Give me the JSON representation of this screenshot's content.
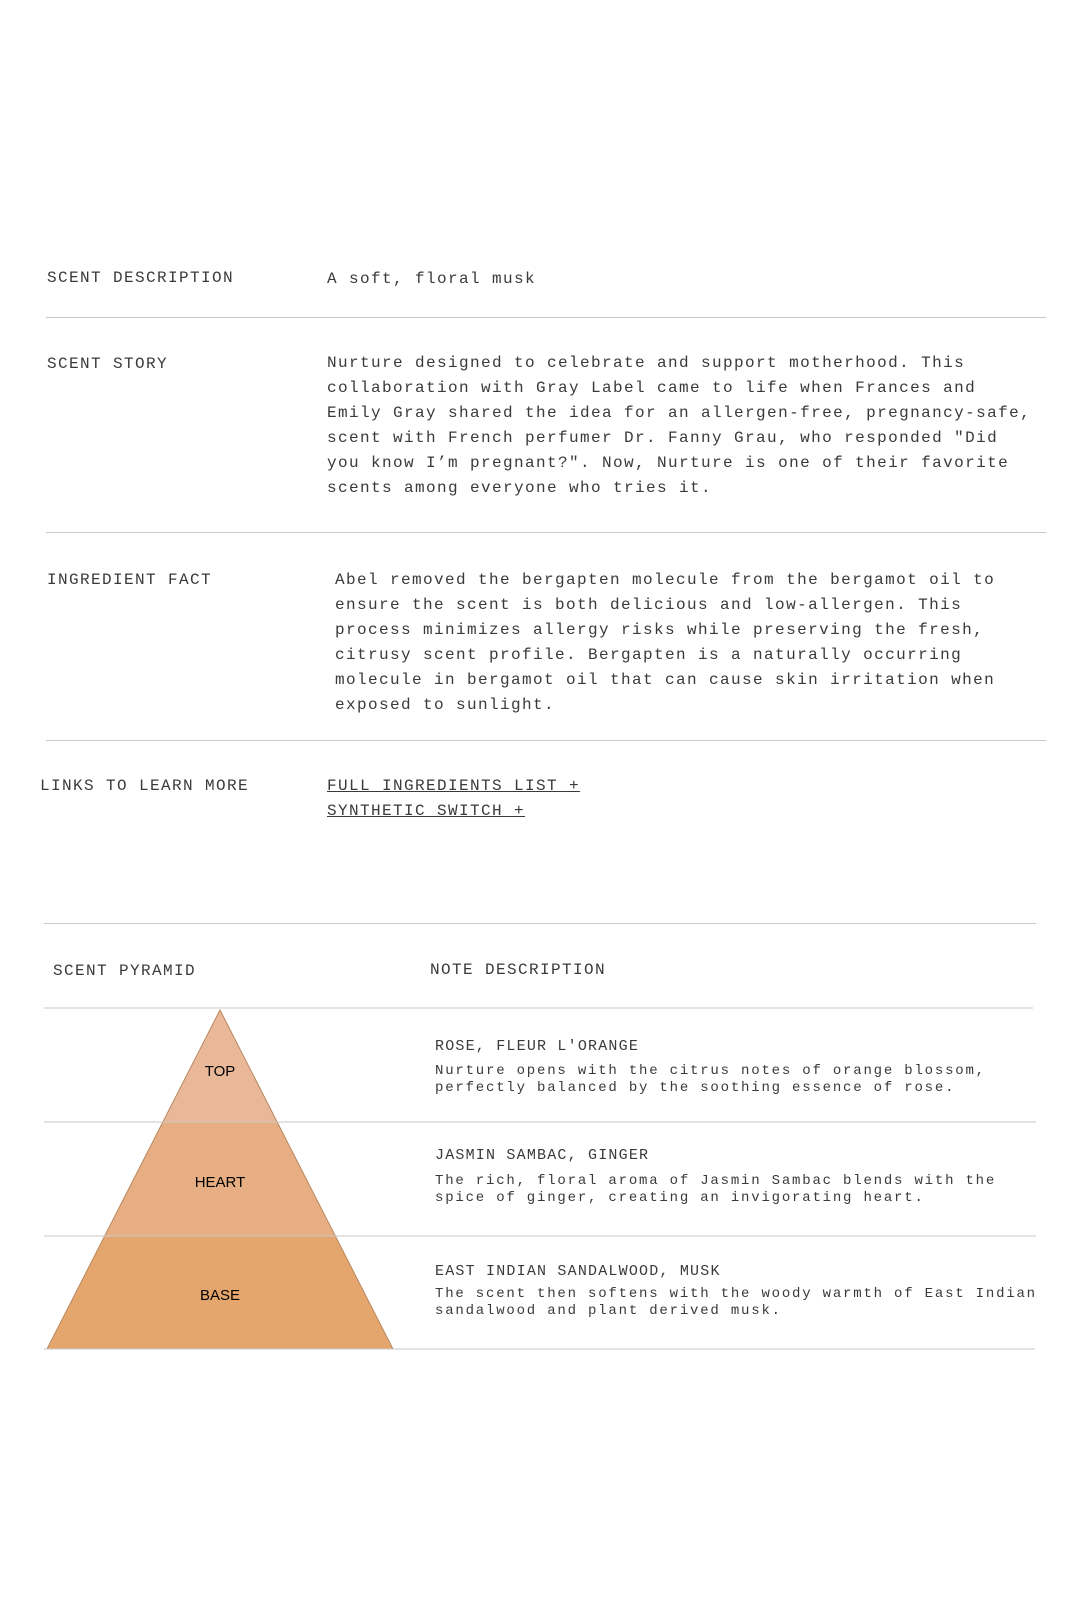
{
  "details": [
    {
      "label": "SCENT DESCRIPTION",
      "lines": [
        "A soft, floral musk"
      ]
    },
    {
      "label": "SCENT STORY",
      "lines": [
        "Nurture designed to celebrate and support motherhood. This",
        "collaboration with Gray Label came to life when Frances and",
        "Emily Gray shared the idea for an allergen-free, pregnancy-safe,",
        "scent with French perfumer Dr. Fanny Grau, who responded \"Did",
        "you know I’m pregnant?\". Now, Nurture is one of their favorite",
        "scents among everyone who tries it."
      ]
    },
    {
      "label": "INGREDIENT FACT",
      "lines": [
        "Abel removed the bergapten molecule from the bergamot oil to",
        "ensure the scent is both delicious and low-allergen. This",
        "process minimizes allergy risks while preserving the fresh,",
        "citrusy scent profile. Bergapten is a naturally occurring",
        "molecule in bergamot oil that can cause skin irritation when",
        "exposed to sunlight."
      ]
    }
  ],
  "links": {
    "label": "LINKS TO LEARN MORE",
    "items": [
      "FULL INGREDIENTS LIST +",
      "SYNTHETIC SWITCH +"
    ]
  },
  "pyramid": {
    "header_left": "SCENT PYRAMID",
    "header_right": "NOTE DESCRIPTION",
    "colors": {
      "top": "#e8b898",
      "heart": "#e6ae82",
      "base": "#e5a66e"
    },
    "tiers": [
      {
        "label": "TOP",
        "title": "ROSE, FLEUR L'ORANGE",
        "desc": [
          "Nurture opens with the citrus notes of orange blossom,",
          "perfectly balanced by the soothing essence of rose."
        ]
      },
      {
        "label": "HEART",
        "title": "JASMIN SAMBAC, GINGER",
        "desc": [
          "The rich, floral aroma of Jasmin Sambac blends with the",
          "spice of ginger, creating an invigorating heart."
        ]
      },
      {
        "label": "BASE",
        "title": "EAST INDIAN SANDALWOOD, MUSK",
        "desc": [
          "The scent then softens with the woody warmth of East Indian",
          "sandalwood and plant derived musk."
        ]
      }
    ]
  }
}
